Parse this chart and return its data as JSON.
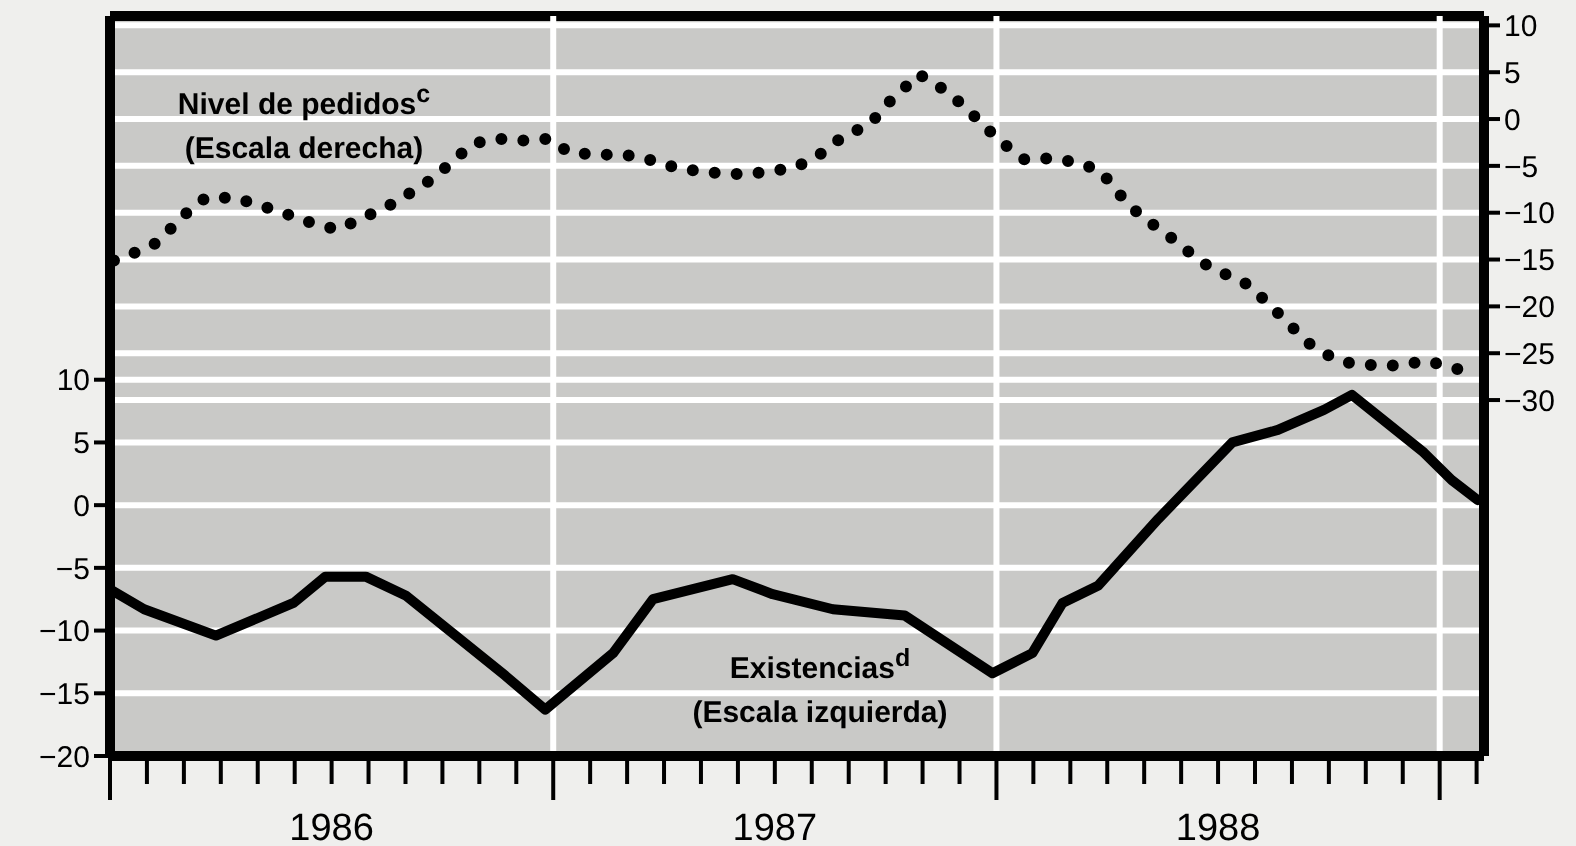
{
  "chart_data": {
    "type": "line",
    "xlim": [
      1986,
      1989.1
    ],
    "xticks": [
      {
        "value": 1986,
        "label": null
      },
      {
        "value": 1986.0833,
        "label": null
      },
      {
        "value": 1986.1667,
        "label": null
      },
      {
        "value": 1986.25,
        "label": null
      },
      {
        "value": 1986.3333,
        "label": null
      },
      {
        "value": 1986.4167,
        "label": null
      },
      {
        "value": 1986.5,
        "label": "1986"
      },
      {
        "value": 1986.5833,
        "label": null
      },
      {
        "value": 1986.6667,
        "label": null
      },
      {
        "value": 1986.75,
        "label": null
      },
      {
        "value": 1986.8333,
        "label": null
      },
      {
        "value": 1986.9167,
        "label": null
      },
      {
        "value": 1987,
        "label": null
      },
      {
        "value": 1987.0833,
        "label": null
      },
      {
        "value": 1987.1667,
        "label": null
      },
      {
        "value": 1987.25,
        "label": null
      },
      {
        "value": 1987.3333,
        "label": null
      },
      {
        "value": 1987.4167,
        "label": null
      },
      {
        "value": 1987.5,
        "label": "1987"
      },
      {
        "value": 1987.5833,
        "label": null
      },
      {
        "value": 1987.6667,
        "label": null
      },
      {
        "value": 1987.75,
        "label": null
      },
      {
        "value": 1987.8333,
        "label": null
      },
      {
        "value": 1987.9167,
        "label": null
      },
      {
        "value": 1988,
        "label": null
      },
      {
        "value": 1988.0833,
        "label": null
      },
      {
        "value": 1988.1667,
        "label": null
      },
      {
        "value": 1988.25,
        "label": null
      },
      {
        "value": 1988.3333,
        "label": null
      },
      {
        "value": 1988.4167,
        "label": null
      },
      {
        "value": 1988.5,
        "label": "1988"
      },
      {
        "value": 1988.5833,
        "label": null
      },
      {
        "value": 1988.6667,
        "label": null
      },
      {
        "value": 1988.75,
        "label": null
      },
      {
        "value": 1988.8333,
        "label": null
      },
      {
        "value": 1988.9167,
        "label": null
      },
      {
        "value": 1989,
        "label": null
      },
      {
        "value": 1989.0833,
        "label": null
      }
    ],
    "ylim": [
      -20,
      39
    ],
    "yticks": [
      -20,
      -15,
      -10,
      -5,
      0,
      5,
      10
    ],
    "y2lim": [
      -68,
      11
    ],
    "y2ticks": [
      -30,
      -25,
      -20,
      -15,
      -10,
      -5,
      0,
      5,
      10
    ],
    "grid": true,
    "ref_lines": [
      {
        "axis": "x",
        "value": 1987,
        "color": "#ffffff"
      },
      {
        "axis": "x",
        "value": 1988,
        "color": "#ffffff"
      },
      {
        "axis": "x",
        "value": 1989,
        "color": "#ffffff"
      }
    ],
    "series": [
      {
        "name": "Nivel de pedidos$^{c}$ (Escala derecha)",
        "color": "#000000",
        "axis": "y2",
        "line_style": "dotted",
        "x": [
          1986.009,
          1986.054,
          1986.099,
          1986.135,
          1986.171,
          1986.216,
          1986.279,
          1986.338,
          1986.396,
          1986.455,
          1986.514,
          1986.572,
          1986.631,
          1986.68,
          1986.73,
          1986.775,
          1986.82,
          1986.874,
          1986.937,
          1986.991,
          1987.036,
          1987.099,
          1987.162,
          1987.221,
          1987.284,
          1987.356,
          1987.423,
          1987.491,
          1987.55,
          1987.604,
          1987.653,
          1987.716,
          1987.748,
          1987.784,
          1987.824,
          1987.865,
          1987.919,
          1987.968,
          1988.009,
          1988.063,
          1988.122,
          1988.18,
          1988.234,
          1988.279,
          1988.32,
          1988.36,
          1988.41,
          1988.459,
          1988.509,
          1988.568,
          1988.622,
          1988.662,
          1988.707,
          1988.752,
          1988.793,
          1988.856,
          1988.91,
          1988.968,
          1989.027,
          1989.077
        ],
        "values": [
          -15.1,
          -14.3,
          -13.4,
          -11.8,
          -10.1,
          -8.4,
          -8.4,
          -9.2,
          -10.1,
          -11.1,
          -11.8,
          -10.5,
          -9.2,
          -7.8,
          -6.3,
          -4.4,
          -2.6,
          -2.1,
          -2.3,
          -2.1,
          -3.6,
          -3.8,
          -3.8,
          -4.4,
          -5.3,
          -5.7,
          -5.9,
          -5.6,
          -5.1,
          -3.7,
          -1.9,
          -0.5,
          1.4,
          2.9,
          4.8,
          3.7,
          1.7,
          -0.5,
          -2.4,
          -4.3,
          -4.2,
          -4.6,
          -5.5,
          -8.1,
          -10.1,
          -11.5,
          -13.2,
          -15.2,
          -16.4,
          -17.7,
          -20.1,
          -22,
          -24,
          -25.3,
          -26,
          -26.3,
          -26.3,
          -25.8,
          -26.5,
          -27.2
        ]
      },
      {
        "name": "Existencias$^{d}$ (Escala izquierda)",
        "color": "#000000",
        "line_style": "solid",
        "x": [
          1986,
          1986.077,
          1986.239,
          1986.414,
          1986.486,
          1986.577,
          1986.667,
          1986.892,
          1986.982,
          1987.135,
          1987.225,
          1987.315,
          1987.405,
          1987.495,
          1987.631,
          1987.793,
          1987.991,
          1988.081,
          1988.149,
          1988.23,
          1988.365,
          1988.532,
          1988.635,
          1988.739,
          1988.802,
          1988.964,
          1989.027,
          1989.086
        ],
        "values": [
          -6.7,
          -8.3,
          -10.4,
          -7.8,
          -5.7,
          -5.7,
          -7.2,
          -13.6,
          -16.3,
          -11.8,
          -7.5,
          -6.7,
          -5.9,
          -7.1,
          -8.3,
          -8.8,
          -13.4,
          -11.8,
          -7.8,
          -6.4,
          -1.1,
          5,
          6,
          7.6,
          8.8,
          4.2,
          2,
          0.4
        ]
      }
    ]
  }
}
